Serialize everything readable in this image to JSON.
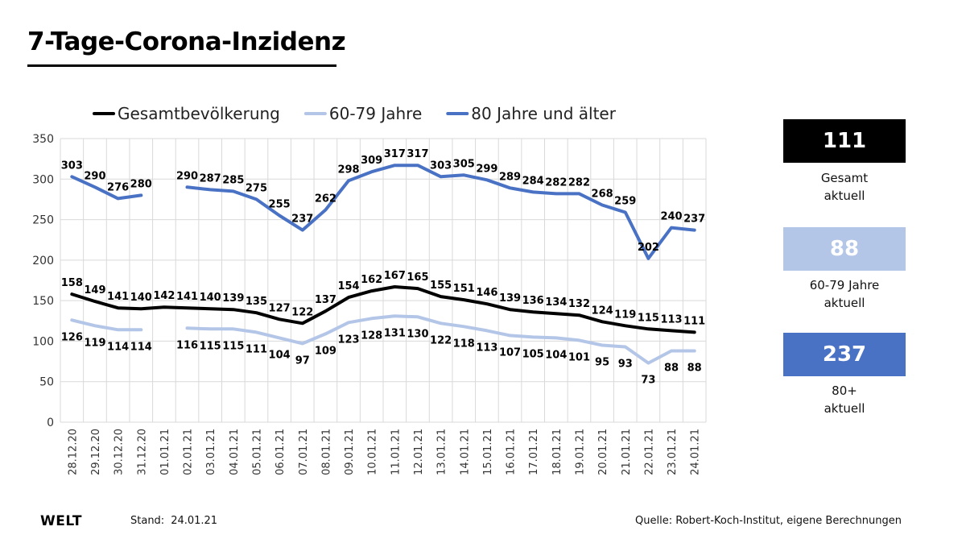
{
  "title": "7-Tage-Corona-Inzidenz",
  "colors": {
    "gesamt": "#000000",
    "age6079": "#b4c6e7",
    "age80": "#4a72c4",
    "grid": "#d9d9d9",
    "axis_text": "#333333"
  },
  "chart_data": {
    "type": "line",
    "x": [
      "28.12.20",
      "29.12.20",
      "30.12.20",
      "31.12.20",
      "01.01.21",
      "02.01.21",
      "03.01.21",
      "04.01.21",
      "05.01.21",
      "06.01.21",
      "07.01.21",
      "08.01.21",
      "09.01.21",
      "10.01.21",
      "11.01.21",
      "12.01.21",
      "13.01.21",
      "14.01.21",
      "15.01.21",
      "16.01.21",
      "17.01.21",
      "18.01.21",
      "19.01.21",
      "20.01.21",
      "21.01.21",
      "22.01.21",
      "23.01.21",
      "24.01.21"
    ],
    "ylim": [
      0,
      350
    ],
    "yticks": [
      0,
      50,
      100,
      150,
      200,
      250,
      300,
      350
    ],
    "grid": true,
    "legend_position": "top",
    "series": [
      {
        "name": "Gesamtbevölkerung",
        "color": "#000000",
        "label_position": "above",
        "values": [
          158,
          149,
          141,
          140,
          142,
          141,
          140,
          139,
          135,
          127,
          122,
          137,
          154,
          162,
          167,
          165,
          155,
          151,
          146,
          139,
          136,
          134,
          132,
          124,
          119,
          115,
          113,
          111
        ]
      },
      {
        "name": "60-79 Jahre",
        "color": "#b4c6e7",
        "label_position": "below",
        "values": [
          126,
          119,
          114,
          114,
          null,
          116,
          115,
          115,
          111,
          104,
          97,
          109,
          123,
          128,
          131,
          130,
          122,
          118,
          113,
          107,
          105,
          104,
          101,
          95,
          93,
          73,
          88,
          88
        ]
      },
      {
        "name": "80 Jahre und älter",
        "color": "#4a72c4",
        "label_position": "above",
        "values": [
          303,
          290,
          276,
          280,
          null,
          290,
          287,
          285,
          275,
          255,
          237,
          262,
          298,
          309,
          317,
          317,
          303,
          305,
          299,
          289,
          284,
          282,
          282,
          268,
          259,
          202,
          240,
          237
        ]
      }
    ]
  },
  "tiles": [
    {
      "value": "111",
      "caption1": "Gesamt",
      "caption2": "aktuell",
      "bg": "#000000",
      "fg": "#ffffff"
    },
    {
      "value": "88",
      "caption1": "60-79 Jahre",
      "caption2": "aktuell",
      "bg": "#b4c6e7",
      "fg": "#ffffff"
    },
    {
      "value": "237",
      "caption1": "80+",
      "caption2": "aktuell",
      "bg": "#4a72c4",
      "fg": "#ffffff"
    }
  ],
  "footer": {
    "logo": "WELT",
    "stand_label": "Stand:",
    "stand_date": "24.01.21",
    "source": "Quelle: Robert-Koch-Institut, eigene Berechnungen"
  }
}
